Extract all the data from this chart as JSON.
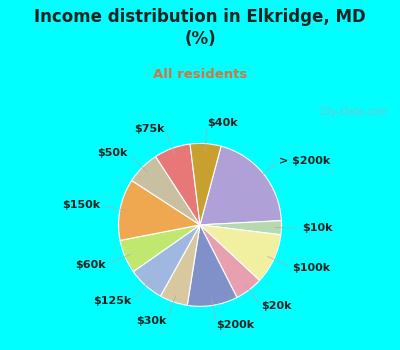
{
  "title": "Income distribution in Elkridge, MD\n(%)",
  "subtitle": "All residents",
  "title_color": "#222222",
  "subtitle_color": "#cc7744",
  "bg_color_outer": "#00FFFF",
  "bg_color_chart": "#dff0e8",
  "watermark": "City-Data.com",
  "labels": [
    "> $200k",
    "$10k",
    "$100k",
    "$20k",
    "$200k",
    "$30k",
    "$125k",
    "$60k",
    "$150k",
    "$50k",
    "$75k",
    "$40k"
  ],
  "values": [
    18.0,
    2.5,
    9.0,
    5.0,
    9.0,
    5.0,
    6.5,
    6.0,
    11.0,
    6.0,
    6.5,
    5.5
  ],
  "colors": [
    "#b0a0d8",
    "#b8d8b0",
    "#f0f0a0",
    "#e8a0b0",
    "#8090c8",
    "#d8c8a0",
    "#a0b8e0",
    "#c0e870",
    "#f0a850",
    "#c8c0a0",
    "#e87878",
    "#c8a030"
  ],
  "startangle": 75,
  "label_fontsize": 8,
  "label_color": "#222222",
  "labeldistance": 1.25
}
